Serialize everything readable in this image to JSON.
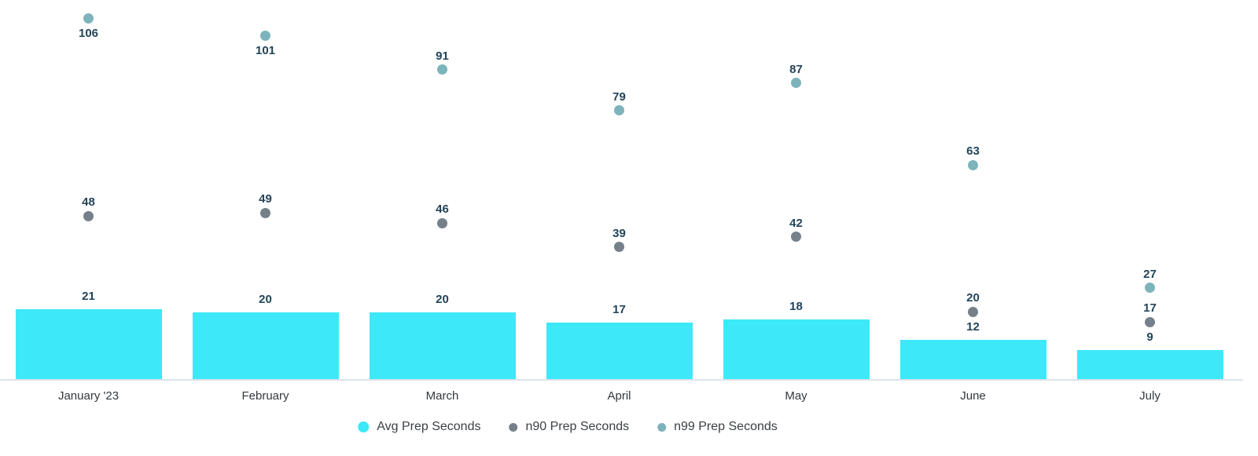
{
  "chart_data": {
    "type": "bar",
    "categories": [
      "January '23",
      "February",
      "March",
      "April",
      "May",
      "June",
      "July"
    ],
    "series": [
      {
        "name": "Avg Prep Seconds",
        "type": "bar",
        "color": "#3de8f9",
        "values": [
          21,
          20,
          20,
          17,
          18,
          12,
          9
        ]
      },
      {
        "name": "n90 Prep Seconds",
        "type": "scatter",
        "color": "#75808a",
        "values": [
          48,
          49,
          46,
          39,
          42,
          20,
          17
        ]
      },
      {
        "name": "n99 Prep Seconds",
        "type": "scatter",
        "color": "#7db4bb",
        "values": [
          106,
          101,
          91,
          79,
          87,
          63,
          27
        ]
      }
    ],
    "title": "",
    "xlabel": "",
    "ylabel": "",
    "ylim": [
      0,
      111.5
    ],
    "grid": false,
    "legend_position": "bottom",
    "value_labels": true,
    "value_label_color": "#234459",
    "axis_tick_color": "#34383c",
    "baseline_color": "#dde2ea",
    "background": "#ffffff"
  }
}
